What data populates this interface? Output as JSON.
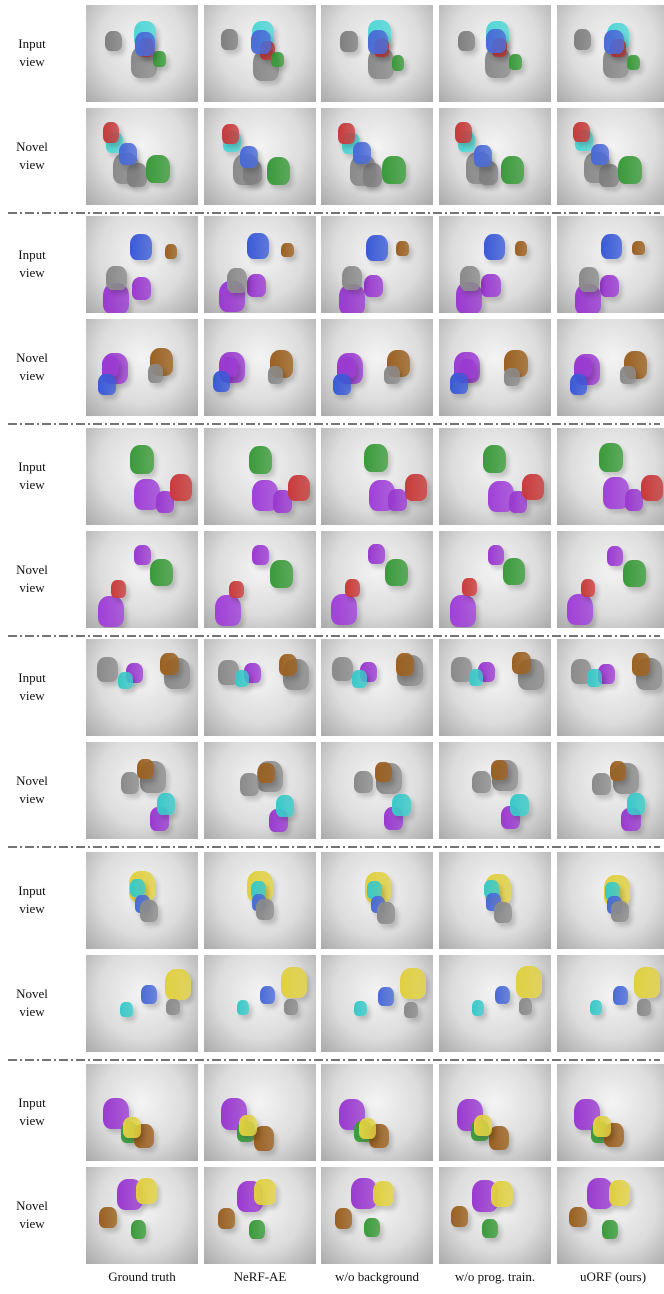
{
  "groups": [
    {
      "rows": [
        {
          "label": "Input view"
        },
        {
          "label": "Novel view"
        }
      ]
    },
    {
      "rows": [
        {
          "label": "Input view"
        },
        {
          "label": "Novel view"
        }
      ]
    },
    {
      "rows": [
        {
          "label": "Input view"
        },
        {
          "label": "Novel view"
        }
      ]
    },
    {
      "rows": [
        {
          "label": "Input view"
        },
        {
          "label": "Novel view"
        }
      ]
    },
    {
      "rows": [
        {
          "label": "Input view"
        },
        {
          "label": "Novel view"
        }
      ]
    },
    {
      "rows": [
        {
          "label": "Input view"
        },
        {
          "label": "Novel view"
        }
      ]
    }
  ],
  "columns": [
    "Ground truth",
    "NeRF-AE",
    "w/o background",
    "w/o prog. train.",
    "uORF (ours)"
  ]
}
